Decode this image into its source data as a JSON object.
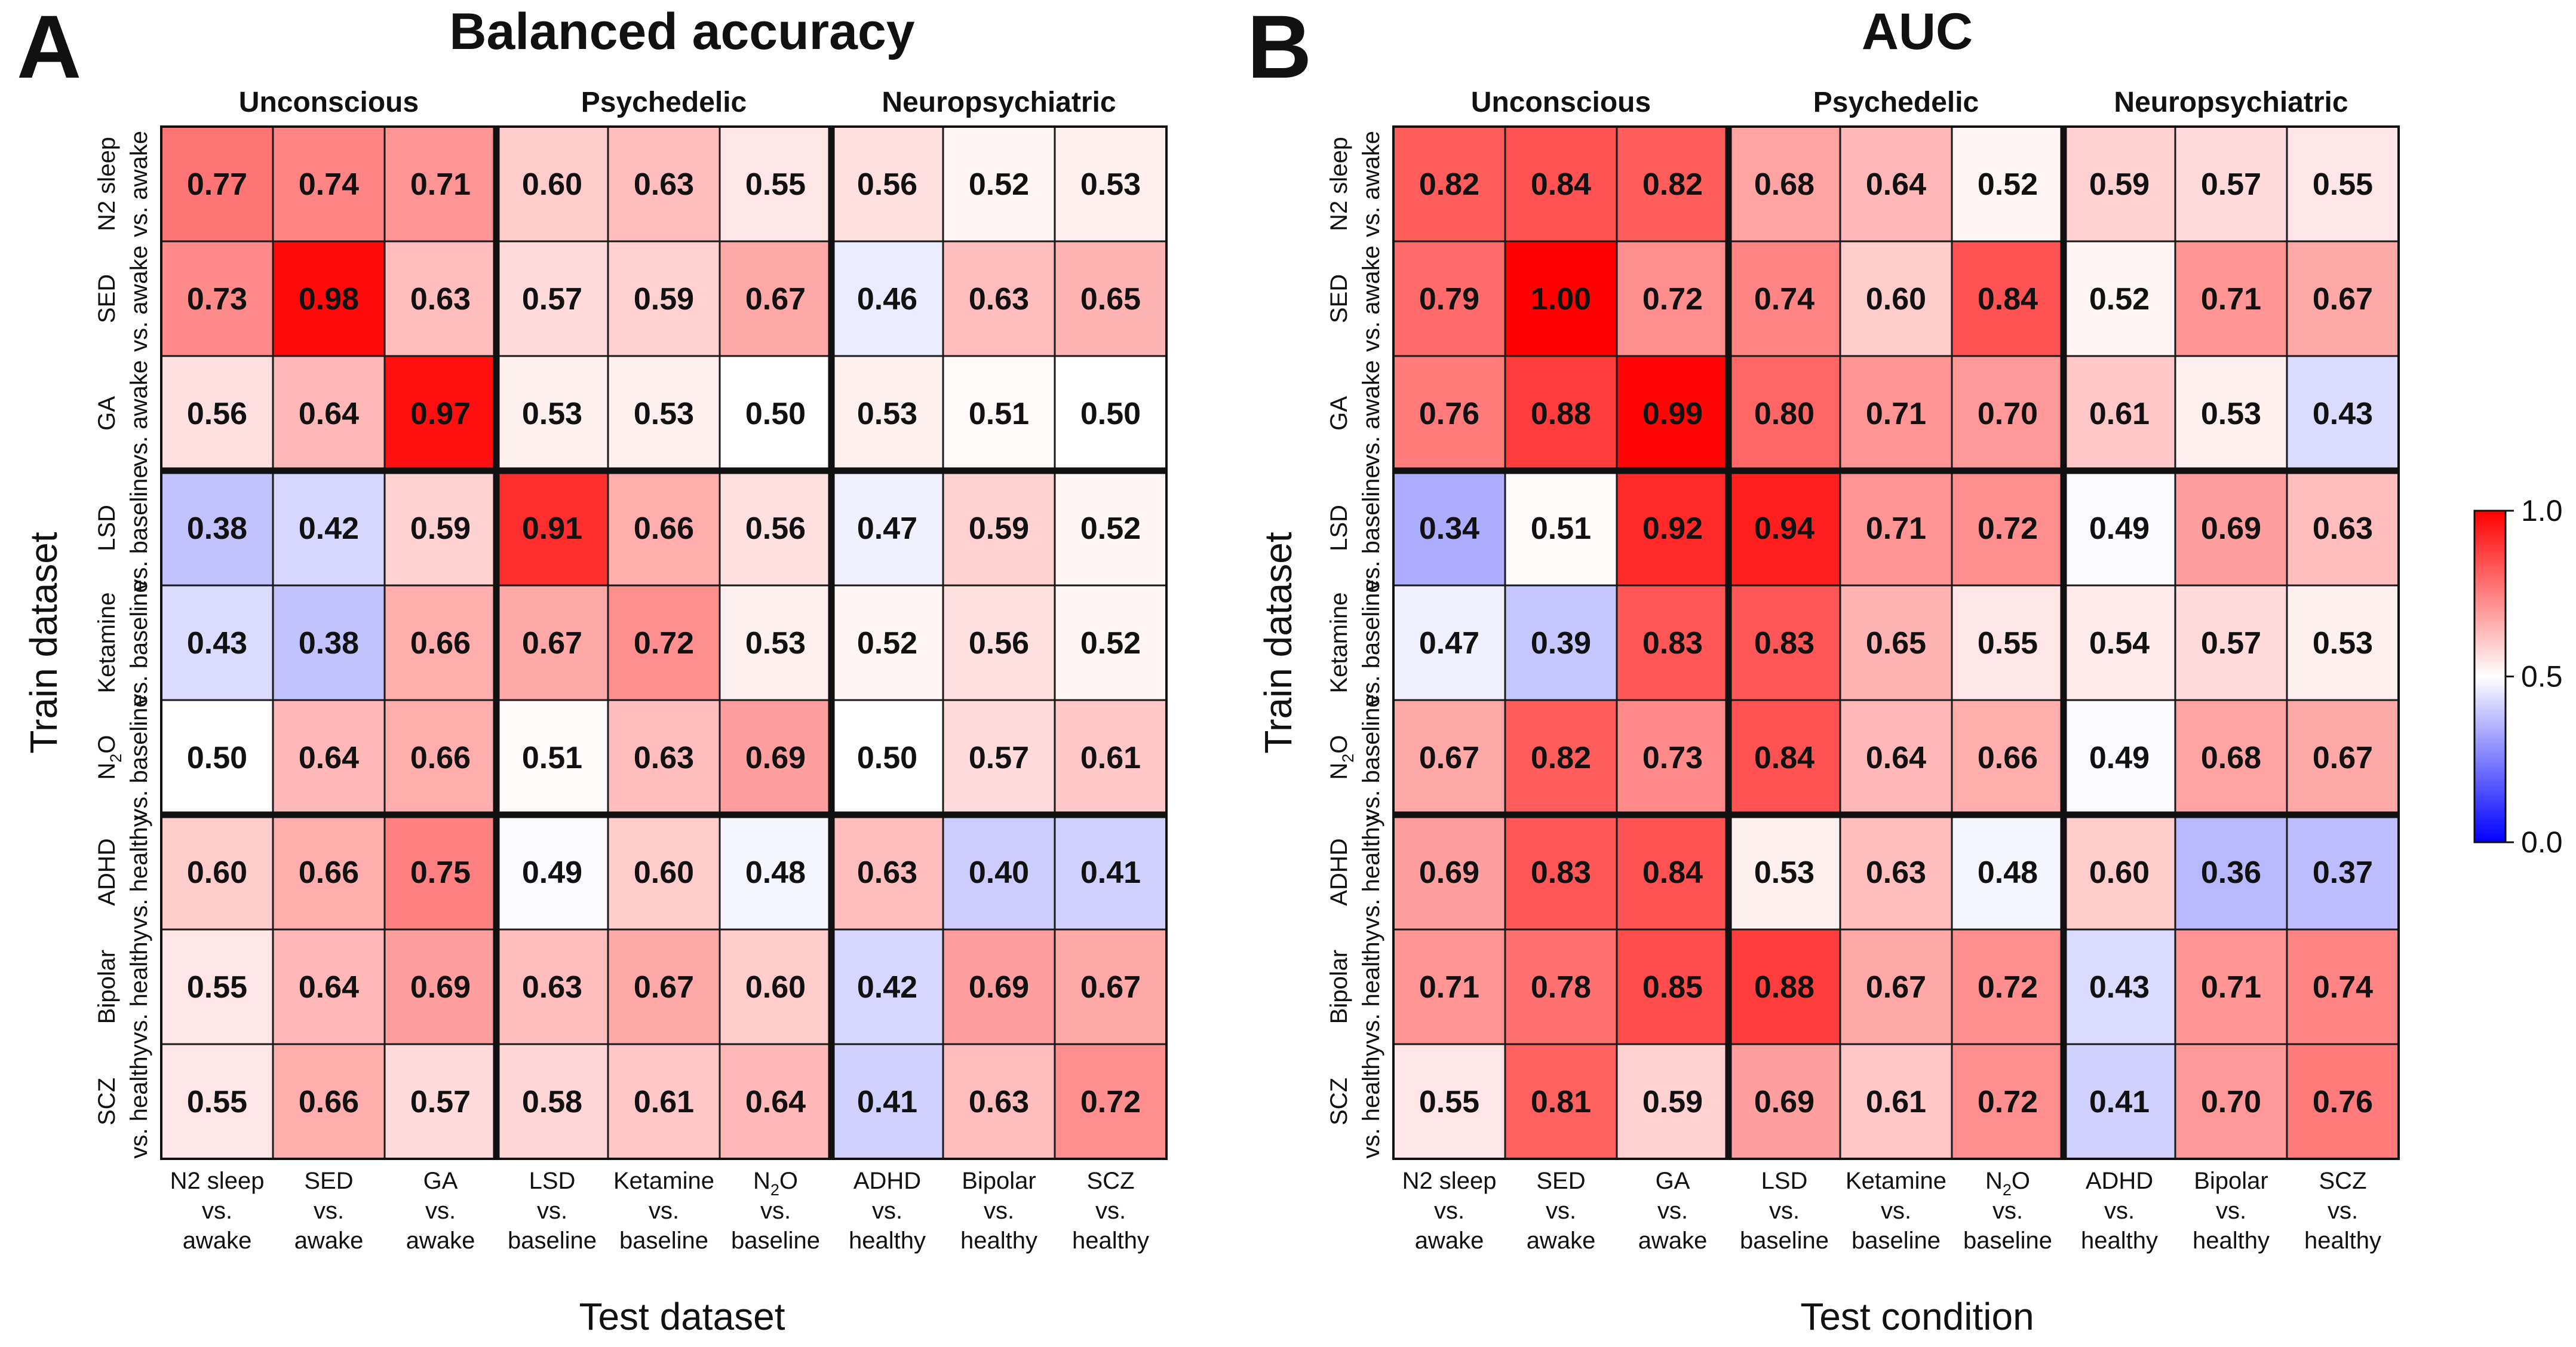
{
  "chart_data": [
    {
      "type": "heatmap",
      "panel_label": "A",
      "title": "Balanced accuracy",
      "xlabel": "Test dataset",
      "ylabel": "Train dataset",
      "group_labels": [
        "Unconscious",
        "Psychedelic",
        "Neuropsychiatric"
      ],
      "columns": [
        {
          "l1": "N2 sleep",
          "l2": "vs.",
          "l3": "awake"
        },
        {
          "l1": "SED",
          "l2": "vs.",
          "l3": "awake"
        },
        {
          "l1": "GA",
          "l2": "vs.",
          "l3": "awake"
        },
        {
          "l1": "LSD",
          "l2": "vs.",
          "l3": "baseline"
        },
        {
          "l1": "Ketamine",
          "l2": "vs.",
          "l3": "baseline"
        },
        {
          "l1": "N2O",
          "l2": "vs.",
          "l3": "baseline"
        },
        {
          "l1": "ADHD",
          "l2": "vs.",
          "l3": "healthy"
        },
        {
          "l1": "Bipolar",
          "l2": "vs.",
          "l3": "healthy"
        },
        {
          "l1": "SCZ",
          "l2": "vs.",
          "l3": "healthy"
        }
      ],
      "rows": [
        {
          "l1": "N2 sleep",
          "l2": "vs.",
          "l3": "awake"
        },
        {
          "l1": "SED",
          "l2": "vs.",
          "l3": "awake"
        },
        {
          "l1": "GA",
          "l2": "vs.",
          "l3": "awake"
        },
        {
          "l1": "LSD",
          "l2": "vs.",
          "l3": "baseline"
        },
        {
          "l1": "Ketamine",
          "l2": "vs.",
          "l3": "baseline"
        },
        {
          "l1": "N2O",
          "l2": "vs.",
          "l3": "baseline"
        },
        {
          "l1": "ADHD",
          "l2": "vs.",
          "l3": "healthy"
        },
        {
          "l1": "Bipolar",
          "l2": "vs.",
          "l3": "healthy"
        },
        {
          "l1": "SCZ",
          "l2": "vs.",
          "l3": "healthy"
        }
      ],
      "values": [
        [
          "0.77",
          "0.74",
          "0.71",
          "0.60",
          "0.63",
          "0.55",
          "0.56",
          "0.52",
          "0.53"
        ],
        [
          "0.73",
          "0.98",
          "0.63",
          "0.57",
          "0.59",
          "0.67",
          "0.46",
          "0.63",
          "0.65"
        ],
        [
          "0.56",
          "0.64",
          "0.97",
          "0.53",
          "0.53",
          "0.50",
          "0.53",
          "0.51",
          "0.50"
        ],
        [
          "0.38",
          "0.42",
          "0.59",
          "0.91",
          "0.66",
          "0.56",
          "0.47",
          "0.59",
          "0.52"
        ],
        [
          "0.43",
          "0.38",
          "0.66",
          "0.67",
          "0.72",
          "0.53",
          "0.52",
          "0.56",
          "0.52"
        ],
        [
          "0.50",
          "0.64",
          "0.66",
          "0.51",
          "0.63",
          "0.69",
          "0.50",
          "0.57",
          "0.61"
        ],
        [
          "0.60",
          "0.66",
          "0.75",
          "0.49",
          "0.60",
          "0.48",
          "0.63",
          "0.40",
          "0.41"
        ],
        [
          "0.55",
          "0.64",
          "0.69",
          "0.63",
          "0.67",
          "0.60",
          "0.42",
          "0.69",
          "0.67"
        ],
        [
          "0.55",
          "0.66",
          "0.57",
          "0.58",
          "0.61",
          "0.64",
          "0.41",
          "0.63",
          "0.72"
        ]
      ]
    },
    {
      "type": "heatmap",
      "panel_label": "B",
      "title": "AUC",
      "xlabel": "Test condition",
      "ylabel": "Train dataset",
      "group_labels": [
        "Unconscious",
        "Psychedelic",
        "Neuropsychiatric"
      ],
      "columns": [
        {
          "l1": "N2 sleep",
          "l2": "vs.",
          "l3": "awake"
        },
        {
          "l1": "SED",
          "l2": "vs.",
          "l3": "awake"
        },
        {
          "l1": "GA",
          "l2": "vs.",
          "l3": "awake"
        },
        {
          "l1": "LSD",
          "l2": "vs.",
          "l3": "baseline"
        },
        {
          "l1": "Ketamine",
          "l2": "vs.",
          "l3": "baseline"
        },
        {
          "l1": "N2O",
          "l2": "vs.",
          "l3": "baseline"
        },
        {
          "l1": "ADHD",
          "l2": "vs.",
          "l3": "healthy"
        },
        {
          "l1": "Bipolar",
          "l2": "vs.",
          "l3": "healthy"
        },
        {
          "l1": "SCZ",
          "l2": "vs.",
          "l3": "healthy"
        }
      ],
      "rows": [
        {
          "l1": "N2 sleep",
          "l2": "vs.",
          "l3": "awake"
        },
        {
          "l1": "SED",
          "l2": "vs.",
          "l3": "awake"
        },
        {
          "l1": "GA",
          "l2": "vs.",
          "l3": "awake"
        },
        {
          "l1": "LSD",
          "l2": "vs.",
          "l3": "baseline"
        },
        {
          "l1": "Ketamine",
          "l2": "vs.",
          "l3": "baseline"
        },
        {
          "l1": "N2O",
          "l2": "vs.",
          "l3": "baseline"
        },
        {
          "l1": "ADHD",
          "l2": "vs.",
          "l3": "healthy"
        },
        {
          "l1": "Bipolar",
          "l2": "vs.",
          "l3": "healthy"
        },
        {
          "l1": "SCZ",
          "l2": "vs.",
          "l3": "healthy"
        }
      ],
      "values": [
        [
          "0.82",
          "0.84",
          "0.82",
          "0.68",
          "0.64",
          "0.52",
          "0.59",
          "0.57",
          "0.55"
        ],
        [
          "0.79",
          "1.00",
          "0.72",
          "0.74",
          "0.60",
          "0.84",
          "0.52",
          "0.71",
          "0.67"
        ],
        [
          "0.76",
          "0.88",
          "0.99",
          "0.80",
          "0.71",
          "0.70",
          "0.61",
          "0.53",
          "0.43"
        ],
        [
          "0.34",
          "0.51",
          "0.92",
          "0.94",
          "0.71",
          "0.72",
          "0.49",
          "0.69",
          "0.63"
        ],
        [
          "0.47",
          "0.39",
          "0.83",
          "0.83",
          "0.65",
          "0.55",
          "0.54",
          "0.57",
          "0.53"
        ],
        [
          "0.67",
          "0.82",
          "0.73",
          "0.84",
          "0.64",
          "0.66",
          "0.49",
          "0.68",
          "0.67"
        ],
        [
          "0.69",
          "0.83",
          "0.84",
          "0.53",
          "0.63",
          "0.48",
          "0.60",
          "0.36",
          "0.37"
        ],
        [
          "0.71",
          "0.78",
          "0.85",
          "0.88",
          "0.67",
          "0.72",
          "0.43",
          "0.71",
          "0.74"
        ],
        [
          "0.55",
          "0.81",
          "0.59",
          "0.69",
          "0.61",
          "0.72",
          "0.41",
          "0.70",
          "0.76"
        ]
      ]
    }
  ],
  "colorbar": {
    "ticks": [
      "1.0",
      "0.5",
      "0.0"
    ],
    "tick_values": [
      1.0,
      0.5,
      0.0
    ],
    "range": [
      0,
      1
    ],
    "low_color": "#0000ff",
    "mid_color": "#ffffff",
    "high_color": "#ff0000"
  }
}
